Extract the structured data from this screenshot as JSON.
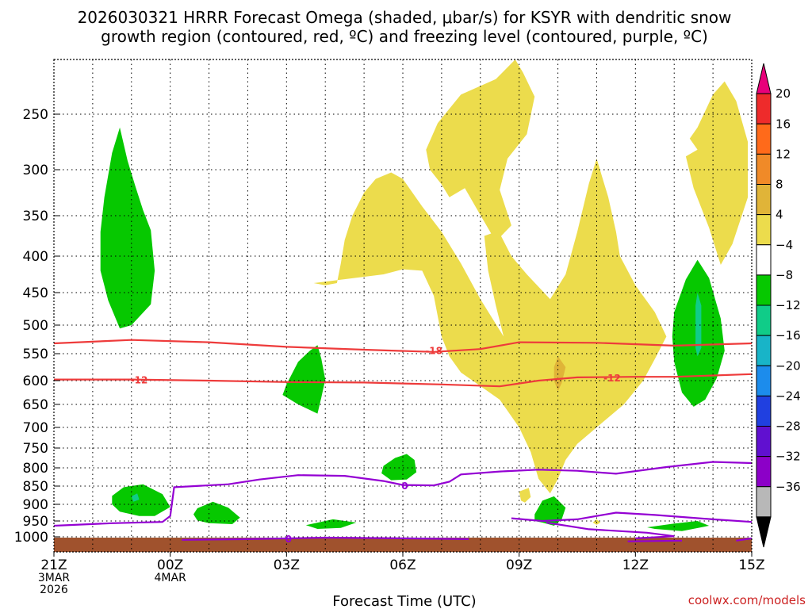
{
  "chart_data": {
    "type": "heatmap",
    "title_line1": "2026030321 HRRR Forecast Omega (shaded, μbar/s) for KSYR with dendritic snow",
    "title_line2": "growth region (contoured, red, ºC) and freezing level (contoured, purple, ºC)",
    "xlabel": "Forecast Time (UTC)",
    "ylabel": "",
    "credit": "coolwx.com/models",
    "x_ticks": [
      {
        "hour": 0,
        "lines": [
          "21Z",
          "3MAR",
          "2026"
        ]
      },
      {
        "hour": 3,
        "lines": [
          "00Z",
          "4MAR"
        ]
      },
      {
        "hour": 6,
        "lines": [
          "03Z"
        ]
      },
      {
        "hour": 9,
        "lines": [
          "06Z"
        ]
      },
      {
        "hour": 12,
        "lines": [
          "09Z"
        ]
      },
      {
        "hour": 15,
        "lines": [
          "12Z"
        ]
      },
      {
        "hour": 18,
        "lines": [
          "15Z"
        ]
      }
    ],
    "xlim": [
      0,
      18
    ],
    "y_ticks": [
      250,
      300,
      350,
      400,
      450,
      500,
      550,
      600,
      650,
      700,
      750,
      800,
      850,
      900,
      950,
      1000
    ],
    "ylim": [
      1020,
      200
    ],
    "colorbar": {
      "levels": [
        "20",
        "16",
        "12",
        "8",
        "4",
        "−4",
        "−8",
        "−12",
        "−16",
        "−20",
        "−24",
        "−28",
        "−32",
        "−36"
      ],
      "colors": [
        "#e8007a",
        "#ee2b2b",
        "#ff6a1a",
        "#f08a28",
        "#e0b438",
        "#ecdc4c",
        "#ffffff",
        "#06c800",
        "#10cc88",
        "#18b4c8",
        "#1c8cec",
        "#2040e0",
        "#6010d0",
        "#8c00c8",
        "#b8b8b8",
        "#000000"
      ]
    },
    "dgz_contours": [
      {
        "label": "-18",
        "points": [
          [
            0,
            532
          ],
          [
            2,
            526
          ],
          [
            4,
            530
          ],
          [
            6,
            538
          ],
          [
            8,
            543
          ],
          [
            9.8,
            547
          ],
          [
            11,
            542
          ],
          [
            12,
            530
          ],
          [
            14,
            531
          ],
          [
            16,
            536
          ],
          [
            18,
            532
          ]
        ]
      },
      {
        "label": "-12",
        "points": [
          [
            0,
            598
          ],
          [
            2,
            598
          ],
          [
            4,
            600
          ],
          [
            6,
            603
          ],
          [
            8,
            604
          ],
          [
            10,
            608
          ],
          [
            11.5,
            612
          ],
          [
            12.5,
            600
          ],
          [
            13.5,
            594
          ],
          [
            15,
            593
          ],
          [
            16,
            593
          ],
          [
            18,
            588
          ]
        ]
      }
    ],
    "freezing_contours": [
      {
        "label": "0",
        "points": [
          [
            0,
            965
          ],
          [
            1.5,
            957
          ],
          [
            2.8,
            953
          ],
          [
            3.0,
            935
          ],
          [
            3.1,
            853
          ],
          [
            4.5,
            845
          ],
          [
            5.3,
            832
          ],
          [
            6.3,
            820
          ],
          [
            7.5,
            822
          ],
          [
            8.5,
            836
          ],
          [
            9,
            847
          ],
          [
            9.8,
            848
          ],
          [
            10.2,
            838
          ],
          [
            10.5,
            818
          ],
          [
            11.5,
            810
          ],
          [
            12.5,
            805
          ],
          [
            13.5,
            808
          ],
          [
            14.5,
            816
          ],
          [
            15.8,
            798
          ],
          [
            17,
            785
          ],
          [
            18,
            788
          ]
        ]
      },
      {
        "label": "",
        "points": [
          [
            11.8,
            942
          ],
          [
            12.6,
            950
          ],
          [
            13.5,
            945
          ],
          [
            14.5,
            925
          ],
          [
            15.5,
            932
          ],
          [
            17,
            945
          ],
          [
            18,
            953
          ]
        ]
      },
      {
        "label": "",
        "points": [
          [
            12.7,
            955
          ],
          [
            13.8,
            976
          ],
          [
            15.3,
            987
          ],
          [
            16,
            998
          ],
          [
            15,
            1002
          ]
        ]
      },
      {
        "label": "0",
        "points": [
          [
            3.3,
            1004
          ],
          [
            5,
            1003
          ],
          [
            7,
            1001
          ],
          [
            9,
            1002
          ],
          [
            10.7,
            1003
          ]
        ]
      },
      {
        "label": "",
        "points": [
          [
            14.8,
            1006
          ],
          [
            16.2,
            1005
          ]
        ]
      },
      {
        "label": "",
        "points": [
          [
            17.6,
            1005
          ],
          [
            18,
            1002
          ]
        ]
      }
    ],
    "omega_regions": [
      {
        "value": 6,
        "color": "#ecdc4c",
        "points": [
          [
            6.7,
            437
          ],
          [
            8.5,
            425
          ],
          [
            9.0,
            418
          ],
          [
            9.5,
            420
          ],
          [
            9.8,
            455
          ],
          [
            10.0,
            520
          ],
          [
            10.2,
            555
          ],
          [
            10.5,
            585
          ],
          [
            10.8,
            600
          ],
          [
            11.5,
            640
          ],
          [
            12.0,
            700
          ],
          [
            12.3,
            760
          ],
          [
            12.5,
            830
          ],
          [
            12.8,
            870
          ],
          [
            13.0,
            830
          ],
          [
            13.2,
            780
          ],
          [
            13.5,
            740
          ],
          [
            14.0,
            700
          ],
          [
            14.7,
            650
          ],
          [
            15.2,
            600
          ],
          [
            15.5,
            560
          ],
          [
            15.8,
            520
          ],
          [
            15.5,
            480
          ],
          [
            15.0,
            440
          ],
          [
            14.6,
            400
          ],
          [
            14.5,
            370
          ],
          [
            14.3,
            330
          ],
          [
            14.0,
            290
          ],
          [
            13.8,
            315
          ],
          [
            13.5,
            370
          ],
          [
            13.2,
            425
          ],
          [
            12.8,
            460
          ],
          [
            12.2,
            425
          ],
          [
            11.8,
            400
          ],
          [
            11.5,
            372
          ],
          [
            11.4,
            370
          ],
          [
            11.1,
            375
          ],
          [
            11.2,
            420
          ],
          [
            11.4,
            470
          ],
          [
            11.6,
            520
          ],
          [
            11.0,
            460
          ],
          [
            10.5,
            410
          ],
          [
            10.0,
            370
          ],
          [
            9.5,
            340
          ],
          [
            9.0,
            310
          ],
          [
            8.7,
            303
          ],
          [
            8.3,
            310
          ],
          [
            8.0,
            325
          ],
          [
            7.7,
            350
          ],
          [
            7.5,
            380
          ],
          [
            7.4,
            410
          ],
          [
            7.3,
            437
          ],
          [
            7.0,
            440
          ]
        ]
      },
      {
        "value": 6,
        "color": "#ecdc4c",
        "points": [
          [
            9.6,
            282
          ],
          [
            9.9,
            258
          ],
          [
            10.5,
            232
          ],
          [
            11.4,
            218
          ],
          [
            11.9,
            198
          ],
          [
            12.1,
            212
          ],
          [
            12.4,
            234
          ],
          [
            12.2,
            268
          ],
          [
            11.7,
            290
          ],
          [
            11.5,
            322
          ],
          [
            11.8,
            362
          ],
          [
            11.4,
            382
          ],
          [
            10.9,
            342
          ],
          [
            10.6,
            320
          ],
          [
            10.2,
            330
          ],
          [
            10.0,
            316
          ],
          [
            9.7,
            300
          ]
        ]
      },
      {
        "value": 6,
        "color": "#ecdc4c",
        "points": [
          [
            16.6,
            262
          ],
          [
            17.0,
            232
          ],
          [
            17.3,
            220
          ],
          [
            17.6,
            238
          ],
          [
            17.9,
            275
          ],
          [
            17.9,
            330
          ],
          [
            17.5,
            385
          ],
          [
            17.2,
            412
          ],
          [
            16.9,
            365
          ],
          [
            16.5,
            320
          ],
          [
            16.3,
            288
          ],
          [
            16.6,
            282
          ],
          [
            16.4,
            272
          ]
        ]
      },
      {
        "value": 10,
        "color": "#e0b438",
        "points": [
          [
            12.9,
            575
          ],
          [
            13.0,
            555
          ],
          [
            13.2,
            575
          ],
          [
            13.1,
            605
          ],
          [
            13.0,
            622
          ],
          [
            12.9,
            600
          ]
        ]
      },
      {
        "value": 6,
        "color": "#ecdc4c",
        "points": [
          [
            14.0,
            945
          ],
          [
            14.1,
            955
          ],
          [
            14.0,
            962
          ],
          [
            13.9,
            955
          ]
        ]
      },
      {
        "value": 6,
        "color": "#ecdc4c",
        "points": [
          [
            12.0,
            865
          ],
          [
            12.25,
            855
          ],
          [
            12.3,
            880
          ],
          [
            12.15,
            895
          ],
          [
            12.05,
            890
          ]
        ]
      },
      {
        "value": -6,
        "color": "#06c800",
        "points": [
          [
            1.3,
            330
          ],
          [
            1.5,
            285
          ],
          [
            1.7,
            262
          ],
          [
            1.9,
            292
          ],
          [
            2.1,
            318
          ],
          [
            2.3,
            344
          ],
          [
            2.5,
            368
          ],
          [
            2.6,
            420
          ],
          [
            2.5,
            468
          ],
          [
            2.0,
            500
          ],
          [
            1.7,
            506
          ],
          [
            1.4,
            462
          ],
          [
            1.2,
            420
          ],
          [
            1.2,
            370
          ]
        ]
      },
      {
        "value": -6,
        "color": "#06c800",
        "points": [
          [
            6.0,
            608
          ],
          [
            6.3,
            565
          ],
          [
            6.6,
            545
          ],
          [
            6.8,
            535
          ],
          [
            6.9,
            560
          ],
          [
            7.0,
            598
          ],
          [
            6.9,
            635
          ],
          [
            6.8,
            670
          ],
          [
            6.3,
            650
          ],
          [
            5.9,
            630
          ]
        ]
      },
      {
        "value": -6,
        "color": "#06c800",
        "points": [
          [
            8.5,
            795
          ],
          [
            8.8,
            775
          ],
          [
            9.1,
            765
          ],
          [
            9.3,
            780
          ],
          [
            9.35,
            812
          ],
          [
            9.1,
            832
          ],
          [
            8.7,
            834
          ],
          [
            8.45,
            815
          ]
        ]
      },
      {
        "value": -6,
        "color": "#06c800",
        "points": [
          [
            1.5,
            877
          ],
          [
            1.8,
            853
          ],
          [
            2.3,
            845
          ],
          [
            2.8,
            872
          ],
          [
            3.0,
            908
          ],
          [
            2.6,
            935
          ],
          [
            2.2,
            935
          ],
          [
            1.7,
            922
          ],
          [
            1.5,
            900
          ]
        ]
      },
      {
        "value": -6,
        "color": "#06c800",
        "points": [
          [
            3.7,
            912
          ],
          [
            4.1,
            893
          ],
          [
            4.5,
            910
          ],
          [
            4.8,
            940
          ],
          [
            4.6,
            960
          ],
          [
            4.0,
            957
          ],
          [
            3.7,
            948
          ],
          [
            3.6,
            930
          ]
        ]
      },
      {
        "value": -6,
        "color": "#06c800",
        "points": [
          [
            6.5,
            963
          ],
          [
            7.2,
            945
          ],
          [
            7.8,
            955
          ],
          [
            7.4,
            972
          ],
          [
            6.8,
            975
          ]
        ]
      },
      {
        "value": -6,
        "color": "#06c800",
        "points": [
          [
            12.4,
            930
          ],
          [
            12.6,
            890
          ],
          [
            12.9,
            878
          ],
          [
            13.2,
            910
          ],
          [
            13.1,
            945
          ],
          [
            12.9,
            965
          ],
          [
            12.6,
            955
          ],
          [
            12.4,
            950
          ]
        ]
      },
      {
        "value": -6,
        "color": "#06c800",
        "points": [
          [
            15.3,
            970
          ],
          [
            16.0,
            958
          ],
          [
            16.6,
            950
          ],
          [
            16.9,
            965
          ],
          [
            16.2,
            982
          ],
          [
            15.5,
            975
          ]
        ]
      },
      {
        "value": -6,
        "color": "#06c800",
        "points": [
          [
            16.0,
            480
          ],
          [
            16.3,
            432
          ],
          [
            16.6,
            405
          ],
          [
            16.9,
            430
          ],
          [
            17.2,
            490
          ],
          [
            17.3,
            545
          ],
          [
            17.1,
            595
          ],
          [
            16.8,
            640
          ],
          [
            16.5,
            655
          ],
          [
            16.2,
            625
          ],
          [
            16.0,
            565
          ],
          [
            15.95,
            520
          ]
        ]
      },
      {
        "value": -10,
        "color": "#10cc88",
        "points": [
          [
            16.55,
            470
          ],
          [
            16.6,
            450
          ],
          [
            16.7,
            470
          ],
          [
            16.7,
            540
          ],
          [
            16.6,
            555
          ],
          [
            16.55,
            540
          ]
        ]
      },
      {
        "value": -10,
        "color": "#10cc88",
        "points": [
          [
            2.0,
            878
          ],
          [
            2.15,
            870
          ],
          [
            2.2,
            887
          ],
          [
            2.05,
            893
          ]
        ]
      }
    ],
    "ground_color": "#a0522d"
  }
}
